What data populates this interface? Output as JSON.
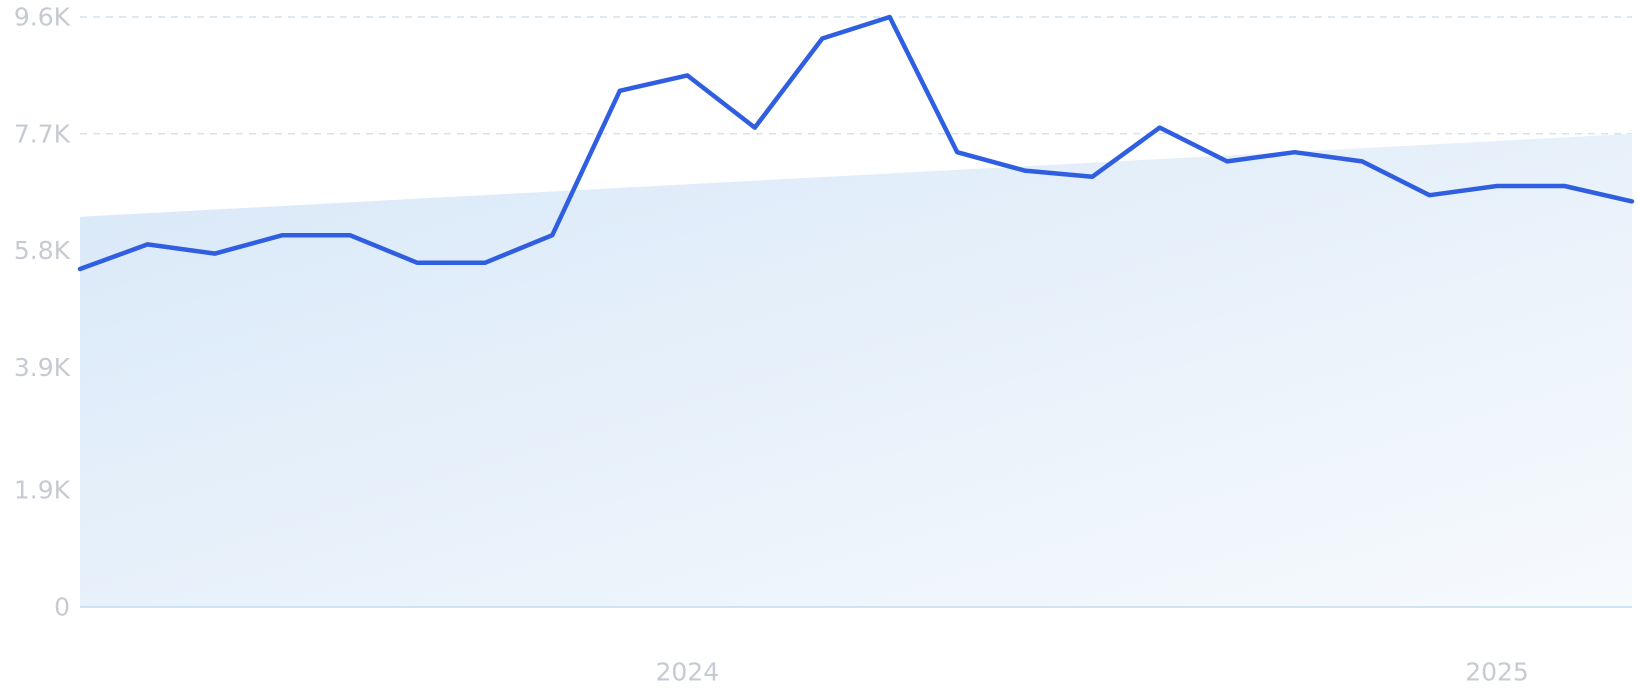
{
  "chart_data": {
    "type": "line",
    "title": "",
    "xlabel": "",
    "ylabel": "",
    "x_range": [
      "2023-04",
      "2025-03"
    ],
    "ylim": [
      0,
      9600
    ],
    "y_ticks": [
      {
        "value": 0,
        "label": "0"
      },
      {
        "value": 1900,
        "label": "1.9K"
      },
      {
        "value": 3900,
        "label": "3.9K"
      },
      {
        "value": 5800,
        "label": "5.8K"
      },
      {
        "value": 7700,
        "label": "7.7K"
      },
      {
        "value": 9600,
        "label": "9.6K"
      }
    ],
    "x_ticks": [
      {
        "value": "2024-01",
        "label": "2024"
      },
      {
        "value": "2025-01",
        "label": "2025"
      }
    ],
    "grid": true,
    "legend": "none",
    "line_color": "#2f5fe0",
    "area_fill": {
      "description": "trend band",
      "start": {
        "x": "2023-04",
        "y": 6350
      },
      "end": {
        "x": "2025-03",
        "y": 7700
      },
      "color_start": "#d8e8f8",
      "color_end": "#f7fafd"
    },
    "series": [
      {
        "points": [
          {
            "x": "2023-04",
            "y": 5500
          },
          {
            "x": "2023-05",
            "y": 5900
          },
          {
            "x": "2023-06",
            "y": 5750
          },
          {
            "x": "2023-07",
            "y": 6050
          },
          {
            "x": "2023-08",
            "y": 6050
          },
          {
            "x": "2023-09",
            "y": 5600
          },
          {
            "x": "2023-10",
            "y": 5600
          },
          {
            "x": "2023-11",
            "y": 6050
          },
          {
            "x": "2023-12",
            "y": 8400
          },
          {
            "x": "2024-01",
            "y": 8650
          },
          {
            "x": "2024-02",
            "y": 7800
          },
          {
            "x": "2024-03",
            "y": 9250
          },
          {
            "x": "2024-04",
            "y": 9600
          },
          {
            "x": "2024-05",
            "y": 7400
          },
          {
            "x": "2024-06",
            "y": 7100
          },
          {
            "x": "2024-07",
            "y": 7000
          },
          {
            "x": "2024-08",
            "y": 7800
          },
          {
            "x": "2024-09",
            "y": 7250
          },
          {
            "x": "2024-10",
            "y": 7400
          },
          {
            "x": "2024-11",
            "y": 7250
          },
          {
            "x": "2024-12",
            "y": 6700
          },
          {
            "x": "2025-01",
            "y": 6850
          },
          {
            "x": "2025-02",
            "y": 6850
          },
          {
            "x": "2025-03",
            "y": 6600
          }
        ]
      }
    ]
  }
}
